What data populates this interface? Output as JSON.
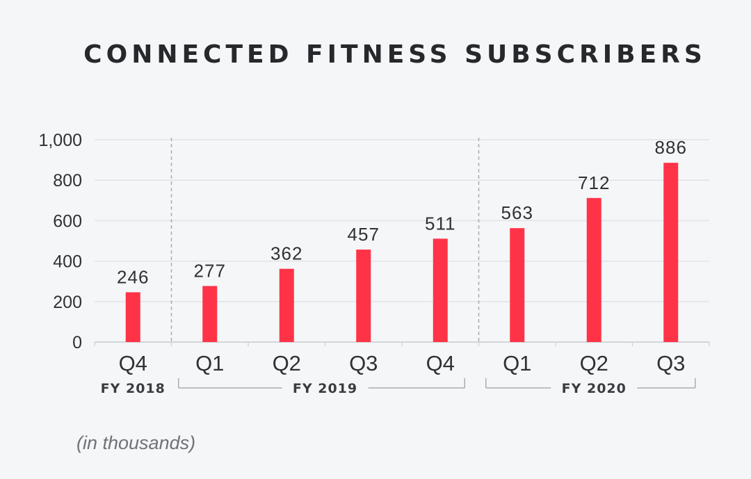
{
  "chart_data": {
    "type": "bar",
    "title": "CONNECTED FITNESS SUBSCRIBERS",
    "categories": [
      "Q4",
      "Q1",
      "Q2",
      "Q3",
      "Q4",
      "Q1",
      "Q2",
      "Q3"
    ],
    "values": [
      246,
      277,
      362,
      457,
      511,
      563,
      712,
      886
    ],
    "ylim": [
      0,
      1000
    ],
    "yticks": [
      "0",
      "200",
      "400",
      "600",
      "800",
      "1,000"
    ],
    "ytick_values": [
      0,
      200,
      400,
      600,
      800,
      1000
    ],
    "grid": true,
    "bar_color": "#ff3347",
    "fiscal_years": [
      {
        "label": "FY 2018",
        "quarters": 1
      },
      {
        "label": "FY 2019",
        "quarters": 4
      },
      {
        "label": "FY 2020",
        "quarters": 3
      }
    ],
    "footnote": "(in thousands)"
  }
}
